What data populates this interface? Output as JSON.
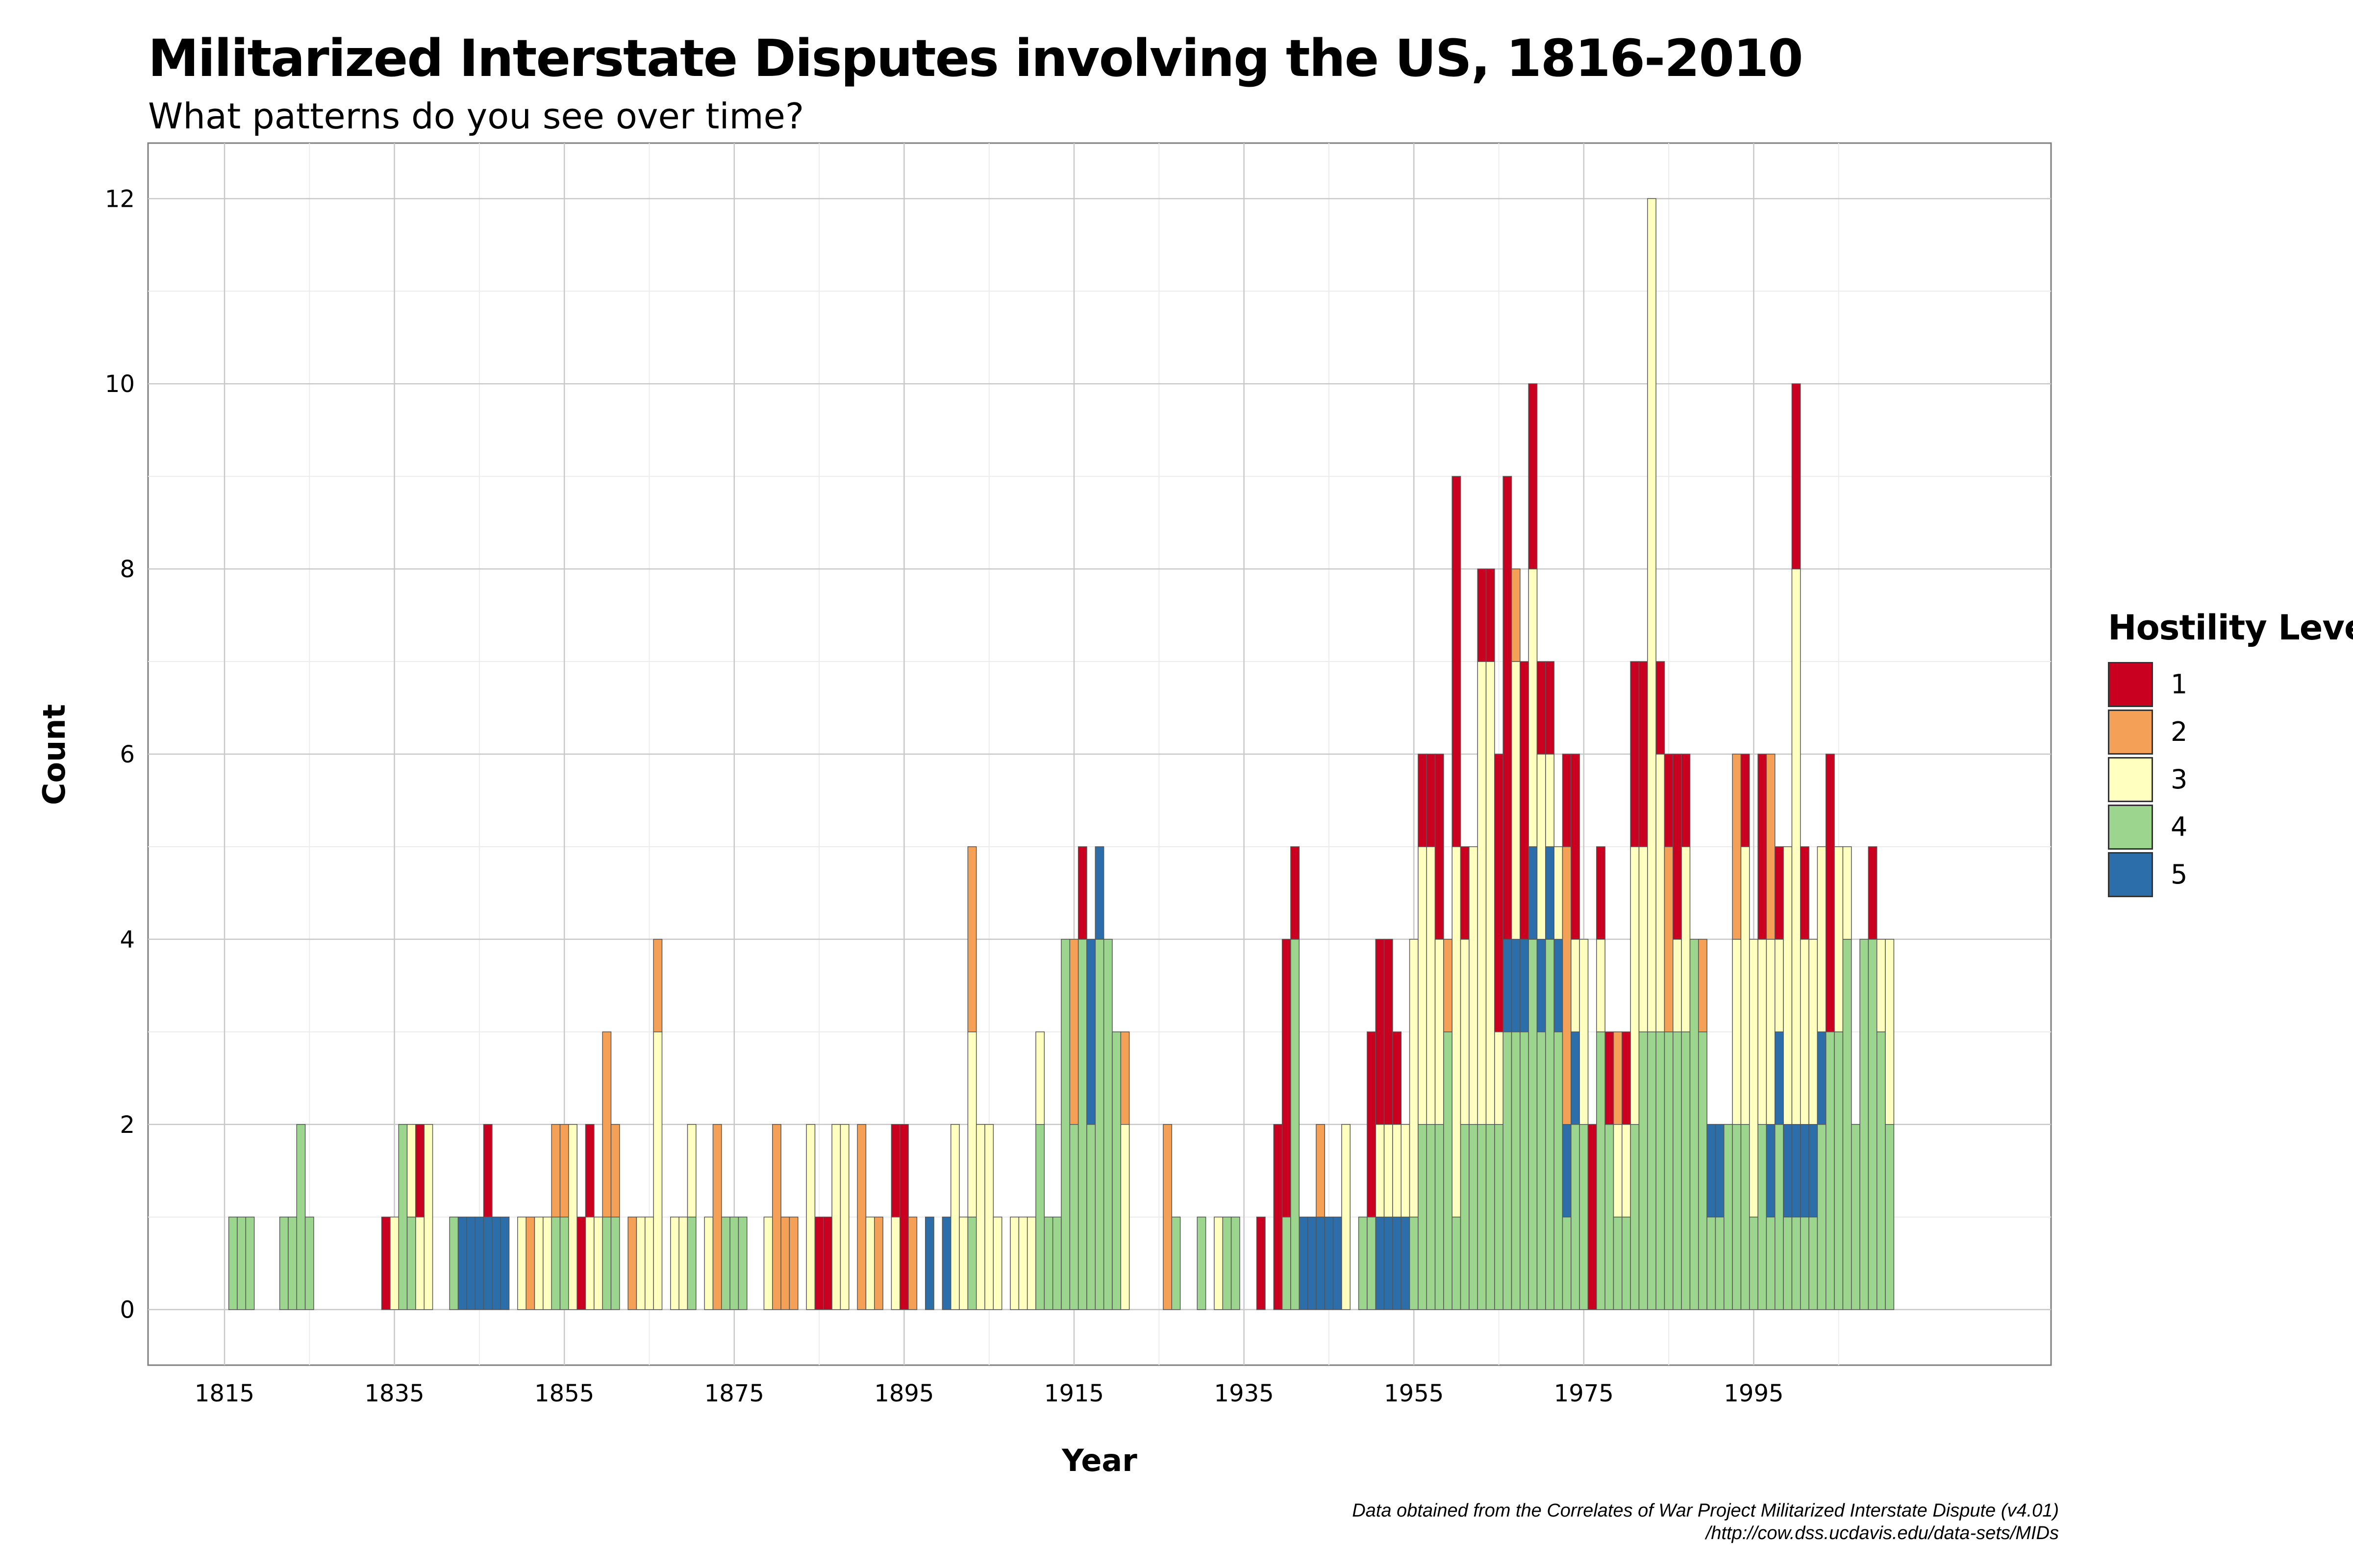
{
  "header": {
    "title": "Militarized Interstate Disputes involving the US, 1816-2010",
    "subtitle": "What patterns do you see over time?"
  },
  "caption": {
    "line1": "Data obtained from the Correlates of War Project Militarized Interstate Dispute (v4.01)",
    "line2": "/http://cow.dss.ucdavis.edu/data-sets/MIDs"
  },
  "legend": {
    "title": "Hostility Level",
    "items": [
      {
        "label": "1",
        "color": "#ca0020"
      },
      {
        "label": "2",
        "color": "#f4a057"
      },
      {
        "label": "3",
        "color": "#ffffbf"
      },
      {
        "label": "4",
        "color": "#9cd68e"
      },
      {
        "label": "5",
        "color": "#2b6ea9"
      }
    ]
  },
  "chart_data": {
    "type": "bar",
    "stacked": true,
    "title": "Militarized Interstate Disputes involving the US, 1816-2010",
    "subtitle": "What patterns do you see over time?",
    "xlabel": "Year",
    "ylabel": "Count",
    "xlim": [
      1806,
      2030
    ],
    "ylim": [
      -0.6,
      12.6
    ],
    "xticks": [
      1815,
      1835,
      1855,
      1875,
      1895,
      1915,
      1935,
      1955,
      1975,
      1995
    ],
    "yticks": [
      0,
      2,
      4,
      6,
      8,
      10,
      12
    ],
    "grid": true,
    "legend_position": "right",
    "bar_width_years": 1,
    "series_order": [
      "4",
      "5",
      "3",
      "2",
      "1"
    ],
    "series_colors": {
      "1": "#ca0020",
      "2": "#f4a057",
      "3": "#ffffbf",
      "4": "#9cd68e",
      "5": "#2b6ea9"
    },
    "counts_by_year": {
      "1816": {
        "4": 1
      },
      "1817": {
        "4": 1
      },
      "1818": {
        "4": 1
      },
      "1822": {
        "4": 1
      },
      "1823": {
        "4": 1
      },
      "1824": {
        "4": 2
      },
      "1825": {
        "4": 1
      },
      "1834": {
        "1": 1
      },
      "1835": {
        "3": 1
      },
      "1836": {
        "4": 2
      },
      "1837": {
        "4": 1,
        "3": 1
      },
      "1838": {
        "3": 1,
        "1": 1
      },
      "1839": {
        "3": 2
      },
      "1842": {
        "4": 1
      },
      "1843": {
        "5": 1
      },
      "1844": {
        "5": 1
      },
      "1845": {
        "5": 1
      },
      "1846": {
        "5": 1,
        "1": 1
      },
      "1847": {
        "5": 1
      },
      "1848": {
        "5": 1
      },
      "1850": {
        "3": 1
      },
      "1851": {
        "2": 1
      },
      "1852": {
        "3": 1
      },
      "1853": {
        "3": 1
      },
      "1854": {
        "4": 1,
        "2": 1
      },
      "1855": {
        "4": 1,
        "2": 1
      },
      "1856": {
        "3": 2
      },
      "1857": {
        "1": 1
      },
      "1858": {
        "3": 1,
        "1": 1
      },
      "1859": {
        "3": 1
      },
      "1860": {
        "4": 1,
        "2": 2
      },
      "1861": {
        "4": 1,
        "2": 1
      },
      "1863": {
        "2": 1
      },
      "1864": {
        "3": 1
      },
      "1865": {
        "3": 1
      },
      "1866": {
        "3": 3,
        "2": 1
      },
      "1868": {
        "3": 1
      },
      "1869": {
        "3": 1
      },
      "1870": {
        "4": 1,
        "3": 1
      },
      "1872": {
        "3": 1
      },
      "1873": {
        "2": 2
      },
      "1874": {
        "4": 1
      },
      "1875": {
        "4": 1
      },
      "1876": {
        "4": 1
      },
      "1879": {
        "3": 1
      },
      "1880": {
        "2": 2
      },
      "1881": {
        "2": 1
      },
      "1882": {
        "2": 1
      },
      "1884": {
        "3": 2
      },
      "1885": {
        "1": 1
      },
      "1886": {
        "1": 1
      },
      "1887": {
        "3": 2
      },
      "1888": {
        "3": 2
      },
      "1890": {
        "2": 2
      },
      "1891": {
        "3": 1
      },
      "1892": {
        "2": 1
      },
      "1894": {
        "3": 1,
        "1": 1
      },
      "1895": {
        "1": 2
      },
      "1896": {
        "2": 1
      },
      "1898": {
        "5": 1
      },
      "1900": {
        "5": 1
      },
      "1901": {
        "3": 2
      },
      "1902": {
        "3": 1
      },
      "1903": {
        "4": 1,
        "3": 2,
        "2": 2
      },
      "1904": {
        "3": 2
      },
      "1905": {
        "3": 2
      },
      "1906": {
        "3": 1
      },
      "1908": {
        "3": 1
      },
      "1909": {
        "3": 1
      },
      "1910": {
        "3": 1
      },
      "1911": {
        "4": 2,
        "3": 1
      },
      "1912": {
        "4": 1
      },
      "1913": {
        "4": 1
      },
      "1914": {
        "4": 4
      },
      "1915": {
        "4": 2,
        "2": 2
      },
      "1916": {
        "4": 4,
        "1": 1
      },
      "1917": {
        "5": 2,
        "4": 2
      },
      "1918": {
        "5": 1,
        "4": 4
      },
      "1919": {
        "4": 4
      },
      "1920": {
        "4": 3
      },
      "1921": {
        "3": 2,
        "2": 1
      },
      "1926": {
        "2": 2
      },
      "1927": {
        "4": 1
      },
      "1930": {
        "4": 1
      },
      "1932": {
        "3": 1
      },
      "1933": {
        "4": 1
      },
      "1934": {
        "4": 1
      },
      "1937": {
        "1": 1
      },
      "1939": {
        "1": 2
      },
      "1940": {
        "4": 1,
        "1": 3
      },
      "1941": {
        "4": 4,
        "1": 1
      },
      "1942": {
        "5": 1
      },
      "1943": {
        "5": 1
      },
      "1944": {
        "5": 1,
        "2": 1
      },
      "1945": {
        "5": 1
      },
      "1946": {
        "5": 1
      },
      "1947": {
        "3": 2
      },
      "1949": {
        "4": 1
      },
      "1950": {
        "4": 1,
        "1": 2
      },
      "1951": {
        "5": 1,
        "3": 1,
        "1": 2
      },
      "1952": {
        "5": 1,
        "3": 1,
        "1": 2
      },
      "1953": {
        "5": 1,
        "3": 1,
        "1": 1
      },
      "1954": {
        "5": 1,
        "3": 1
      },
      "1955": {
        "4": 1,
        "3": 3
      },
      "1956": {
        "4": 2,
        "3": 3,
        "1": 1
      },
      "1957": {
        "4": 2,
        "3": 3,
        "1": 1
      },
      "1958": {
        "4": 2,
        "3": 2,
        "1": 2
      },
      "1959": {
        "4": 3,
        "2": 1
      },
      "1960": {
        "4": 1,
        "3": 4,
        "1": 4
      },
      "1961": {
        "4": 2,
        "3": 2,
        "1": 1
      },
      "1962": {
        "4": 2,
        "3": 3
      },
      "1963": {
        "4": 2,
        "3": 5,
        "1": 1
      },
      "1964": {
        "4": 2,
        "3": 5,
        "1": 1
      },
      "1965": {
        "4": 2,
        "3": 1,
        "1": 3
      },
      "1966": {
        "5": 1,
        "4": 3,
        "1": 5
      },
      "1967": {
        "5": 1,
        "4": 3,
        "3": 3,
        "2": 1
      },
      "1968": {
        "5": 1,
        "4": 3,
        "1": 3
      },
      "1969": {
        "5": 1,
        "4": 4,
        "3": 3,
        "1": 2
      },
      "1970": {
        "5": 1,
        "4": 3,
        "3": 2,
        "1": 1
      },
      "1971": {
        "5": 1,
        "4": 4,
        "3": 1,
        "1": 1
      },
      "1972": {
        "5": 1,
        "4": 3,
        "3": 1
      },
      "1973": {
        "5": 1,
        "4": 1,
        "2": 3,
        "1": 1
      },
      "1974": {
        "5": 1,
        "4": 2,
        "3": 1,
        "1": 2
      },
      "1975": {
        "4": 2,
        "3": 2
      },
      "1976": {
        "1": 2
      },
      "1977": {
        "4": 3,
        "3": 1,
        "1": 1
      },
      "1978": {
        "4": 2,
        "1": 1
      },
      "1979": {
        "4": 1,
        "3": 1,
        "2": 1
      },
      "1980": {
        "4": 1,
        "3": 1,
        "1": 1
      },
      "1981": {
        "4": 2,
        "3": 3,
        "1": 2
      },
      "1982": {
        "4": 3,
        "3": 2,
        "1": 2
      },
      "1983": {
        "4": 3,
        "3": 9
      },
      "1984": {
        "4": 3,
        "3": 3,
        "1": 1
      },
      "1985": {
        "4": 3,
        "2": 2,
        "1": 1
      },
      "1986": {
        "4": 3,
        "3": 1,
        "1": 2
      },
      "1987": {
        "4": 3,
        "3": 2,
        "1": 1
      },
      "1988": {
        "4": 4
      },
      "1989": {
        "4": 3,
        "2": 1
      },
      "1990": {
        "5": 1,
        "4": 1
      },
      "1991": {
        "5": 1,
        "4": 1
      },
      "1992": {
        "4": 2
      },
      "1993": {
        "4": 2,
        "3": 2,
        "2": 2
      },
      "1994": {
        "4": 2,
        "3": 3,
        "1": 1
      },
      "1995": {
        "4": 1,
        "3": 3
      },
      "1996": {
        "4": 2,
        "3": 2,
        "1": 2
      },
      "1997": {
        "5": 1,
        "4": 1,
        "3": 2,
        "2": 2
      },
      "1998": {
        "5": 1,
        "4": 2,
        "3": 1,
        "1": 1
      },
      "1999": {
        "5": 1,
        "4": 1,
        "3": 3
      },
      "2000": {
        "5": 1,
        "4": 1,
        "3": 6,
        "1": 2
      },
      "2001": {
        "5": 1,
        "4": 1,
        "3": 2,
        "1": 1
      },
      "2002": {
        "5": 1,
        "4": 1,
        "3": 2
      },
      "2003": {
        "5": 1,
        "4": 2,
        "3": 2
      },
      "2004": {
        "4": 3,
        "1": 3
      },
      "2005": {
        "4": 3,
        "3": 2
      },
      "2006": {
        "4": 4,
        "3": 1
      },
      "2007": {
        "4": 2
      },
      "2008": {
        "4": 4
      },
      "2009": {
        "4": 4,
        "1": 1
      },
      "2010": {
        "4": 3,
        "3": 1
      },
      "2011": {
        "4": 2,
        "3": 2
      }
    }
  }
}
